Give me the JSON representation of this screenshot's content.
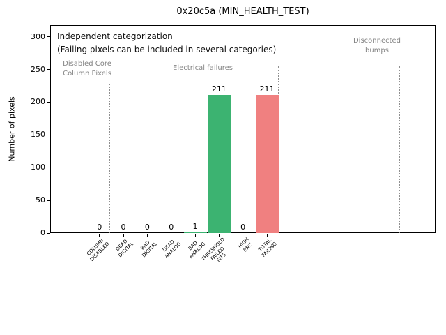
{
  "chart_data": {
    "type": "bar",
    "title": "0x20c5a (MIN_HEALTH_TEST)",
    "ylabel": "Number of pixels",
    "xlabel": "",
    "categories": [
      "COLUMN\nDISABLED",
      "DEAD\nDIGITAL",
      "BAD\nDIGITAL",
      "DEAD\nANALOG",
      "BAD\nANALOG",
      "THRESHOLD\nFAILED\nFITS",
      "HIGH\nENC",
      "TOTAL\nFAILING"
    ],
    "values": [
      0,
      0,
      0,
      0,
      1,
      211,
      0,
      211
    ],
    "bar_colors": [
      "#3CB371",
      "#3CB371",
      "#3CB371",
      "#3CB371",
      "#3CB371",
      "#3CB371",
      "#3CB371",
      "#F08080"
    ],
    "yticks": [
      0,
      50,
      100,
      150,
      200,
      250,
      300
    ],
    "ylim": [
      0,
      318
    ],
    "grid": false,
    "legend": "none",
    "annotations": {
      "independent": "Independent categorization",
      "failing_note": "(Failing pixels can be included in several categories)",
      "disabled_core": "Disabled Core\nColumn Pixels",
      "electrical": "Electrical failures",
      "disconnected": "Disconnected\nbumps"
    },
    "palette": {
      "pass_green": "#3CB371",
      "fail_red": "#F08080",
      "section_gray": "#858585",
      "separator_gray": "#8f8f8f"
    }
  }
}
